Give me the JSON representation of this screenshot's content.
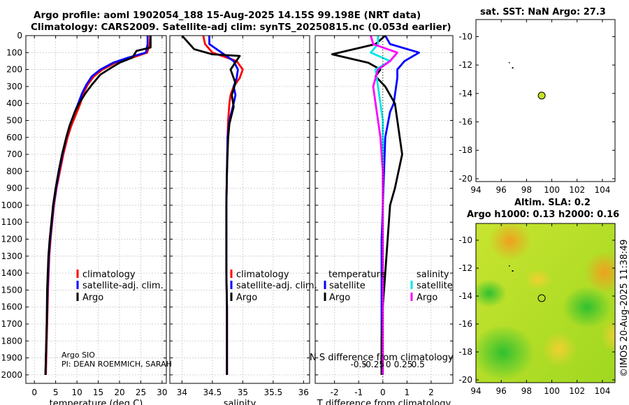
{
  "header": {
    "line1": "Argo profile: aoml 1902054_188 15-Aug-2025 14.15S 99.198E (NRT data)",
    "line2": "Climatology: CARS2009. Satellite-adj clim: synTS_20250815.nc (0.053d earlier)"
  },
  "sst_title": "sat. SST: NaN Argo: 27.3",
  "sla_title1": "Altim. SLA: 0.2",
  "sla_title2": "Argo h1000: 0.13 h2000: 0.16",
  "imos_stamp": "©IMOS 20-Aug-2025 11:38:49",
  "credits": {
    "line1": "Argo SIO",
    "line2": "PI: DEAN ROEMMICH, SARAH"
  },
  "legends": {
    "climatology": "climatology",
    "satellite_adj": "satellite-adj. clim.",
    "argo": "Argo",
    "temperature_head": "temperature",
    "salinity_head": "salinity",
    "satellite": "satellite",
    "argo_t": "Argo",
    "argo_s": "Argo"
  },
  "colors": {
    "climatology": "#ff0000",
    "satellite": "#0000ff",
    "argo": "#000000",
    "sat_s": "#00e5e5",
    "argo_s": "#ff00ff"
  },
  "chart_data": [
    {
      "type": "line",
      "name": "temperature",
      "xlabel": "temperature (deg C)",
      "ylabel": "",
      "xlim": [
        -2,
        31
      ],
      "ylim": [
        2050,
        0
      ],
      "xticks": [
        0,
        5,
        10,
        15,
        20,
        25,
        30
      ],
      "yticks": [
        0,
        100,
        200,
        300,
        400,
        500,
        600,
        700,
        800,
        900,
        1000,
        1100,
        1200,
        1300,
        1400,
        1500,
        1600,
        1700,
        1800,
        1900,
        2000
      ],
      "series": [
        {
          "name": "climatology",
          "color": "#ff0000",
          "x": [
            27.2,
            27.1,
            26.5,
            23,
            19,
            16,
            14,
            12.5,
            11.5,
            10.8,
            10,
            8.7,
            7.8,
            6.8,
            6,
            5.2,
            4.6,
            4.2,
            3.8,
            3.5,
            3.2,
            3.0,
            2.9,
            2.8,
            2.7
          ],
          "y": [
            0,
            50,
            100,
            130,
            160,
            200,
            240,
            290,
            340,
            400,
            450,
            530,
            600,
            700,
            800,
            900,
            1000,
            1100,
            1200,
            1300,
            1500,
            1700,
            1800,
            1900,
            2000
          ]
        },
        {
          "name": "satellite-adj. clim.",
          "color": "#0000ff",
          "x": [
            26.6,
            26.6,
            26.2,
            22,
            18.5,
            15.5,
            13.5,
            12.2,
            11.2,
            10.3,
            9.5,
            8.3,
            7.5,
            6.6,
            5.8,
            5.1,
            4.5,
            4.1,
            3.7,
            3.4,
            3.1,
            2.9,
            2.8,
            2.7,
            2.6
          ],
          "y": [
            0,
            50,
            100,
            130,
            160,
            200,
            240,
            290,
            340,
            400,
            450,
            530,
            600,
            700,
            800,
            900,
            1000,
            1100,
            1200,
            1300,
            1500,
            1700,
            1800,
            1900,
            2000
          ]
        },
        {
          "name": "Argo",
          "color": "#000000",
          "x": [
            27.3,
            27.3,
            24,
            23,
            20,
            18,
            15.5,
            13.5,
            12,
            10.5,
            9.5,
            8.3,
            7.5,
            6.5,
            5.7,
            5.0,
            4.4,
            4.0,
            3.6,
            3.3,
            3.0,
            2.9,
            2.8,
            2.7,
            2.6
          ],
          "y": [
            0,
            70,
            90,
            130,
            160,
            190,
            230,
            290,
            340,
            400,
            450,
            530,
            600,
            700,
            800,
            900,
            1000,
            1100,
            1200,
            1300,
            1500,
            1700,
            1800,
            1900,
            2000
          ]
        }
      ]
    },
    {
      "type": "line",
      "name": "salinity",
      "xlabel": "salinity",
      "xlim": [
        33.8,
        36.1
      ],
      "ylim": [
        2050,
        0
      ],
      "xticks": [
        34,
        34.5,
        35,
        35.5,
        36
      ],
      "series": [
        {
          "name": "climatology",
          "color": "#ff0000",
          "x": [
            34.35,
            34.38,
            34.5,
            34.9,
            35.0,
            34.95,
            34.85,
            34.8,
            34.78,
            34.76,
            34.75,
            34.74,
            34.73,
            34.73,
            34.73,
            34.74,
            34.74,
            34.74,
            34.74
          ],
          "y": [
            0,
            50,
            100,
            150,
            200,
            250,
            300,
            350,
            400,
            500,
            600,
            800,
            1000,
            1200,
            1400,
            1600,
            1800,
            1900,
            2000
          ]
        },
        {
          "name": "satellite-adj. clim.",
          "color": "#0000ff",
          "x": [
            34.45,
            34.45,
            34.65,
            34.85,
            34.92,
            34.9,
            34.85,
            34.88,
            34.85,
            34.78,
            34.75,
            34.74,
            34.73,
            34.73,
            34.73,
            34.74,
            34.74,
            34.74,
            34.74
          ],
          "y": [
            0,
            50,
            100,
            150,
            200,
            250,
            300,
            350,
            400,
            500,
            600,
            800,
            1000,
            1200,
            1400,
            1600,
            1800,
            1900,
            2000
          ]
        },
        {
          "name": "Argo",
          "color": "#000000",
          "x": [
            34.0,
            34.1,
            34.2,
            34.5,
            34.95,
            34.8,
            34.88,
            34.82,
            34.85,
            34.78,
            34.76,
            34.74,
            34.73,
            34.73,
            34.73,
            34.74,
            34.74,
            34.74,
            34.74
          ],
          "y": [
            0,
            40,
            80,
            110,
            120,
            200,
            280,
            350,
            420,
            520,
            600,
            800,
            1000,
            1200,
            1400,
            1600,
            1800,
            1900,
            2000
          ]
        }
      ]
    },
    {
      "type": "line",
      "name": "difference",
      "xlabel": "T difference from climatology",
      "xlabel_top": "S difference from climatology",
      "xlim": [
        -2.8,
        2.9
      ],
      "ylim": [
        2050,
        0
      ],
      "xticks": [
        -2,
        -1,
        0,
        1,
        2
      ],
      "xticks_top": [
        -0.5,
        -0.25,
        0,
        0.25,
        0.5
      ],
      "series": [
        {
          "name": "temperature satellite",
          "color": "#0000ff",
          "x": [
            0.1,
            0.3,
            1.5,
            0.9,
            0.6,
            0.6,
            0.5,
            0.45,
            0.3,
            0.1,
            0.05,
            0.0,
            -0.05,
            -0.05,
            -0.05,
            -0.05,
            -0.05,
            -0.05
          ],
          "y": [
            0,
            50,
            100,
            150,
            200,
            250,
            350,
            400,
            450,
            600,
            800,
            1000,
            1200,
            1400,
            1600,
            1800,
            1900,
            2000
          ]
        },
        {
          "name": "temperature Argo",
          "color": "#000000",
          "x": [
            0.1,
            -0.3,
            -2.1,
            -0.6,
            -0.1,
            -0.3,
            0.1,
            0.5,
            0.6,
            0.7,
            0.8,
            0.5,
            0.3,
            0.2,
            0.1,
            0.0,
            -0.05,
            -0.05
          ],
          "y": [
            0,
            50,
            110,
            160,
            200,
            240,
            300,
            400,
            500,
            600,
            700,
            900,
            1000,
            1200,
            1400,
            1600,
            1800,
            2000
          ]
        },
        {
          "name": "salinity satellite",
          "color": "#00e5e5",
          "x": [
            -0.2,
            -0.2,
            -0.5,
            0.3,
            -0.3,
            -0.2,
            -0.1,
            0.0,
            0.0,
            0.0,
            0.0,
            0.0,
            0.0,
            0.0,
            0.0
          ],
          "y": [
            0,
            50,
            100,
            150,
            200,
            300,
            400,
            500,
            600,
            800,
            1000,
            1200,
            1400,
            1600,
            2000
          ]
        },
        {
          "name": "salinity Argo",
          "color": "#ff00ff",
          "x": [
            -0.5,
            -0.4,
            0.6,
            0.3,
            -0.2,
            -0.4,
            -0.3,
            -0.2,
            -0.1,
            0.0,
            0.0,
            0.0,
            0.0,
            0.0
          ],
          "y": [
            0,
            50,
            100,
            150,
            200,
            300,
            400,
            500,
            600,
            800,
            1000,
            1200,
            1600,
            2000
          ]
        }
      ]
    },
    {
      "type": "scatter",
      "name": "sst_map",
      "xlim": [
        94,
        105
      ],
      "ylim": [
        -20.2,
        -8.8
      ],
      "xticks": [
        94,
        96,
        98,
        100,
        102,
        104
      ],
      "yticks": [
        -10,
        -12,
        -14,
        -16,
        -18,
        -20
      ],
      "points": [
        {
          "lon": 99.2,
          "lat": -14.15,
          "fill": "#c8e020"
        }
      ]
    },
    {
      "type": "heatmap",
      "name": "sla_map",
      "xlim": [
        94,
        105
      ],
      "ylim": [
        -20.2,
        -8.8
      ],
      "xticks": [
        94,
        96,
        98,
        100,
        102,
        104
      ],
      "yticks": [
        -10,
        -12,
        -14,
        -16,
        -18,
        -20
      ],
      "points": [
        {
          "lon": 99.2,
          "lat": -14.15,
          "fill": "none"
        }
      ]
    }
  ]
}
